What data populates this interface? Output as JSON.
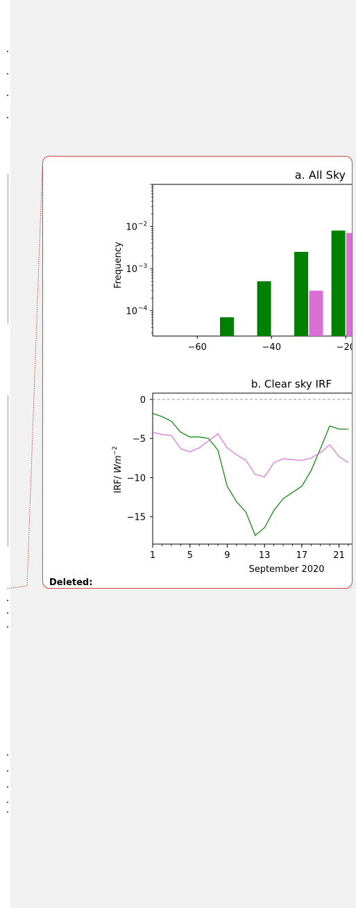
{
  "comment": {
    "label": "Deleted:"
  },
  "colors": {
    "accent": "#d1453d",
    "series_a": "#008000",
    "series_b": "#da70d6",
    "page_bg": "#f1f1f1"
  },
  "chart_data": [
    {
      "type": "bar",
      "title": "a. All Sky",
      "xlabel": "",
      "ylabel": "Frequency",
      "yscale": "log",
      "ylim": [
        2.5e-05,
        0.1
      ],
      "xlim": [
        -72,
        -18
      ],
      "xticks": [
        "−60",
        "−40",
        "−20"
      ],
      "xtick_values": [
        -60,
        -40,
        -20
      ],
      "yticks": [
        "10",
        "10",
        "10"
      ],
      "ytick_exponents": [
        "−2",
        "−3",
        "−4"
      ],
      "ytick_values": [
        0.01,
        0.001,
        0.0001
      ],
      "series": [
        {
          "color": "#008000",
          "bars": [
            {
              "x": -52,
              "value": 7e-05
            },
            {
              "x": -42,
              "value": 0.0005
            },
            {
              "x": -32,
              "value": 0.0025
            },
            {
              "x": -22,
              "value": 0.008
            }
          ]
        },
        {
          "color": "#da70d6",
          "bars": [
            {
              "x": -28,
              "value": 0.0003
            },
            {
              "x": -18,
              "value": 0.007
            }
          ]
        }
      ]
    },
    {
      "type": "line",
      "title": "b. Clear sky IRF",
      "xlabel": "September 2020",
      "ylabel_main": "IRF/ ",
      "ylabel_italic": "Wm",
      "ylabel_sup": "−2",
      "xlim": [
        1,
        22
      ],
      "ylim": [
        -18.5,
        0.8
      ],
      "xticks": [
        "1",
        "5",
        "9",
        "13",
        "17",
        "21"
      ],
      "xtick_values": [
        1,
        5,
        9,
        13,
        17,
        21
      ],
      "yticks": [
        "0",
        "−5",
        "−10",
        "−15"
      ],
      "ytick_values": [
        0,
        -5,
        -10,
        -15
      ],
      "zero_line": true,
      "x": [
        1,
        2,
        3,
        4,
        5,
        6,
        7,
        8,
        9,
        10,
        11,
        12,
        13,
        14,
        15,
        16,
        17,
        18,
        19,
        20,
        21,
        22
      ],
      "series": [
        {
          "color": "#008000",
          "values": [
            -1.8,
            -2.2,
            -2.8,
            -4.2,
            -4.8,
            -4.8,
            -5.0,
            -6.5,
            -11.1,
            -13.1,
            -14.4,
            -17.4,
            -16.4,
            -14.2,
            -12.7,
            -11.9,
            -11.1,
            -9.1,
            -6.3,
            -3.4,
            -3.8,
            -3.8
          ]
        },
        {
          "color": "#da70d6",
          "values": [
            -4.2,
            -4.5,
            -4.6,
            -6.3,
            -6.7,
            -6.2,
            -5.3,
            -4.4,
            -6.2,
            -7.1,
            -7.8,
            -9.6,
            -9.9,
            -8.1,
            -7.6,
            -7.7,
            -7.8,
            -7.5,
            -6.8,
            -5.8,
            -7.3,
            -8.1
          ]
        }
      ]
    }
  ]
}
